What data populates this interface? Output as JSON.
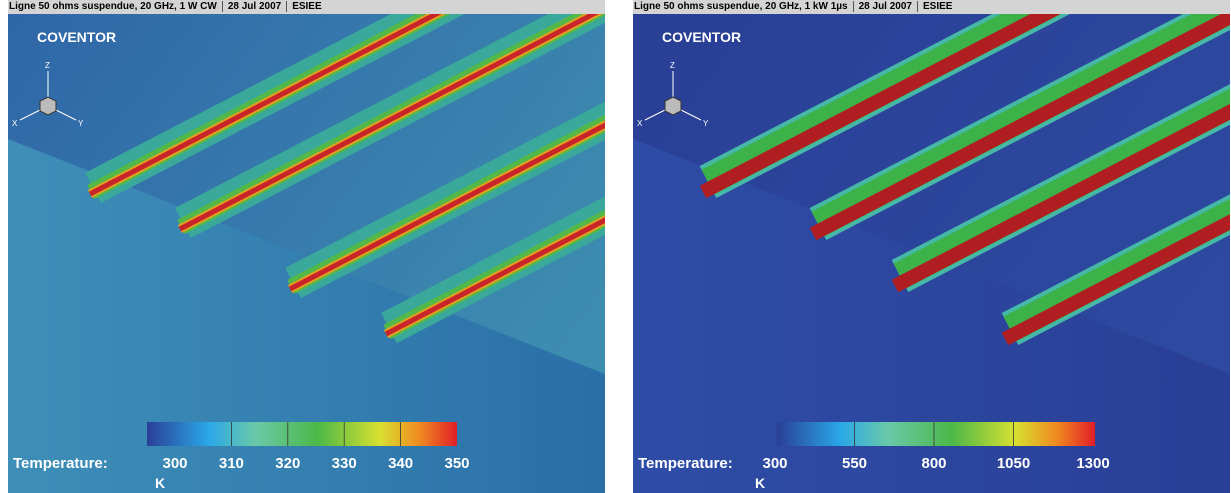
{
  "panels": [
    {
      "header": {
        "title": "Ligne 50 ohms suspendue, 20 GHz, 1 W CW",
        "date": "28 Jul 2007",
        "org": "ESIEE"
      },
      "logo": "COVENTOR",
      "axes": {
        "z": "Z",
        "x": "X",
        "y": "Y"
      },
      "colorbar": {
        "label": "Temperature:",
        "ticks": [
          300,
          310,
          320,
          330,
          340,
          350
        ],
        "unit": "K"
      }
    },
    {
      "header": {
        "title": "Ligne 50 ohms suspendue, 20 GHz, 1 kW 1µs",
        "date": "28 Jul 2007",
        "org": "ESIEE"
      },
      "logo": "COVENTOR",
      "axes": {
        "z": "Z",
        "x": "X",
        "y": "Y"
      },
      "colorbar": {
        "label": "Temperature:",
        "ticks": [
          300,
          550,
          800,
          1050,
          1300
        ],
        "unit": "K"
      }
    }
  ]
}
